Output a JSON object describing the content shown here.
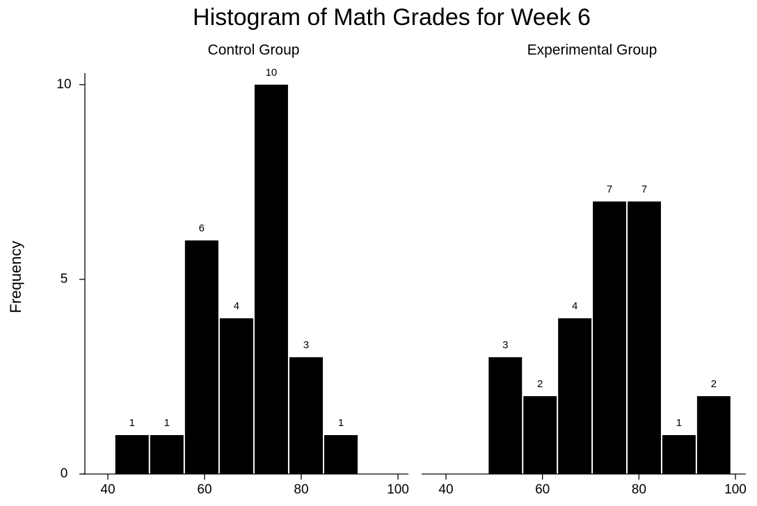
{
  "title": "Histogram of Math Grades for Week 6",
  "chart_data": [
    {
      "type": "histogram",
      "subtitle": "Control Group",
      "ylabel": "Frequency",
      "bins": [
        41.4,
        48.6,
        55.8,
        63.0,
        70.2,
        77.4,
        84.6,
        91.8
      ],
      "values": [
        1,
        1,
        6,
        4,
        10,
        3,
        1
      ],
      "color": "#000000",
      "xlim": [
        35.5,
        102
      ],
      "xticks": [
        40,
        60,
        80,
        100
      ],
      "ylim": [
        0,
        10.3
      ],
      "yticks": [
        0,
        5,
        10
      ]
    },
    {
      "type": "histogram",
      "subtitle": "Experimental Group",
      "bins": [
        48.7,
        55.9,
        63.1,
        70.3,
        77.5,
        84.7,
        91.9,
        99.1
      ],
      "values": [
        3,
        2,
        4,
        7,
        7,
        1,
        2
      ],
      "color": "#000000",
      "xlim": [
        35.5,
        102
      ],
      "xticks": [
        40,
        60,
        80,
        100
      ],
      "ylim": [
        0,
        10.3
      ]
    }
  ]
}
